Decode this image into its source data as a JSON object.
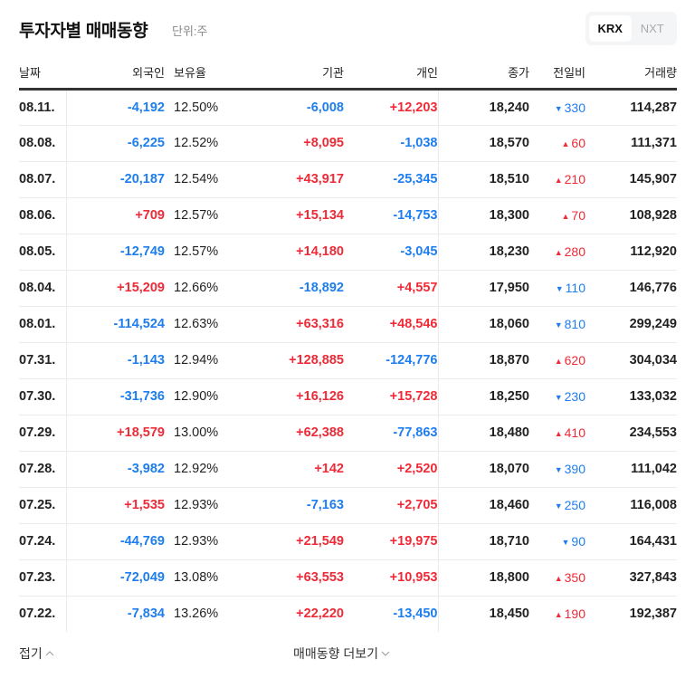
{
  "header": {
    "title": "투자자별 매매동향",
    "unit": "단위:주"
  },
  "market_toggle": {
    "options": [
      {
        "label": "KRX",
        "active": true
      },
      {
        "label": "NXT",
        "active": false
      }
    ]
  },
  "colors": {
    "up": "#f02a37",
    "down": "#1e7ef0",
    "text": "#222222",
    "muted": "#888888"
  },
  "table": {
    "columns": [
      "날짜",
      "외국인",
      "보유율",
      "기관",
      "개인",
      "종가",
      "전일비",
      "거래량"
    ],
    "rows": [
      {
        "date": "08.11.",
        "foreign": "-4,192",
        "holding": "12.50%",
        "inst": "-6,008",
        "indiv": "+12,203",
        "close": "18,240",
        "change_dir": "down",
        "change": "330",
        "volume": "114,287"
      },
      {
        "date": "08.08.",
        "foreign": "-6,225",
        "holding": "12.52%",
        "inst": "+8,095",
        "indiv": "-1,038",
        "close": "18,570",
        "change_dir": "up",
        "change": "60",
        "volume": "111,371"
      },
      {
        "date": "08.07.",
        "foreign": "-20,187",
        "holding": "12.54%",
        "inst": "+43,917",
        "indiv": "-25,345",
        "close": "18,510",
        "change_dir": "up",
        "change": "210",
        "volume": "145,907"
      },
      {
        "date": "08.06.",
        "foreign": "+709",
        "holding": "12.57%",
        "inst": "+15,134",
        "indiv": "-14,753",
        "close": "18,300",
        "change_dir": "up",
        "change": "70",
        "volume": "108,928"
      },
      {
        "date": "08.05.",
        "foreign": "-12,749",
        "holding": "12.57%",
        "inst": "+14,180",
        "indiv": "-3,045",
        "close": "18,230",
        "change_dir": "up",
        "change": "280",
        "volume": "112,920"
      },
      {
        "date": "08.04.",
        "foreign": "+15,209",
        "holding": "12.66%",
        "inst": "-18,892",
        "indiv": "+4,557",
        "close": "17,950",
        "change_dir": "down",
        "change": "110",
        "volume": "146,776"
      },
      {
        "date": "08.01.",
        "foreign": "-114,524",
        "holding": "12.63%",
        "inst": "+63,316",
        "indiv": "+48,546",
        "close": "18,060",
        "change_dir": "down",
        "change": "810",
        "volume": "299,249"
      },
      {
        "date": "07.31.",
        "foreign": "-1,143",
        "holding": "12.94%",
        "inst": "+128,885",
        "indiv": "-124,776",
        "close": "18,870",
        "change_dir": "up",
        "change": "620",
        "volume": "304,034"
      },
      {
        "date": "07.30.",
        "foreign": "-31,736",
        "holding": "12.90%",
        "inst": "+16,126",
        "indiv": "+15,728",
        "close": "18,250",
        "change_dir": "down",
        "change": "230",
        "volume": "133,032"
      },
      {
        "date": "07.29.",
        "foreign": "+18,579",
        "holding": "13.00%",
        "inst": "+62,388",
        "indiv": "-77,863",
        "close": "18,480",
        "change_dir": "up",
        "change": "410",
        "volume": "234,553"
      },
      {
        "date": "07.28.",
        "foreign": "-3,982",
        "holding": "12.92%",
        "inst": "+142",
        "indiv": "+2,520",
        "close": "18,070",
        "change_dir": "down",
        "change": "390",
        "volume": "111,042"
      },
      {
        "date": "07.25.",
        "foreign": "+1,535",
        "holding": "12.93%",
        "inst": "-7,163",
        "indiv": "+2,705",
        "close": "18,460",
        "change_dir": "down",
        "change": "250",
        "volume": "116,008"
      },
      {
        "date": "07.24.",
        "foreign": "-44,769",
        "holding": "12.93%",
        "inst": "+21,549",
        "indiv": "+19,975",
        "close": "18,710",
        "change_dir": "down",
        "change": "90",
        "volume": "164,431"
      },
      {
        "date": "07.23.",
        "foreign": "-72,049",
        "holding": "13.08%",
        "inst": "+63,553",
        "indiv": "+10,953",
        "close": "18,800",
        "change_dir": "up",
        "change": "350",
        "volume": "327,843"
      },
      {
        "date": "07.22.",
        "foreign": "-7,834",
        "holding": "13.26%",
        "inst": "+22,220",
        "indiv": "-13,450",
        "close": "18,450",
        "change_dir": "up",
        "change": "190",
        "volume": "192,387"
      }
    ]
  },
  "footer": {
    "fold_label": "접기",
    "fold_icon": "chevron-up-icon",
    "more_label": "매매동향 더보기",
    "more_icon": "chevron-down-icon"
  }
}
